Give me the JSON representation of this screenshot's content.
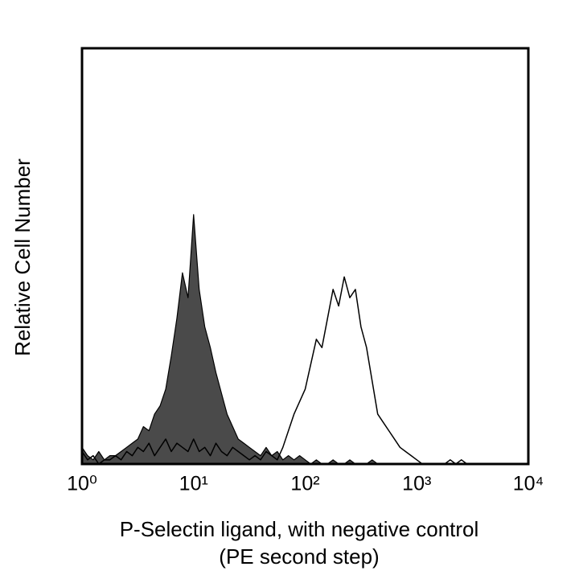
{
  "chart_data": {
    "type": "area",
    "xlabel": [
      "P-Selectin ligand, with negative control",
      "(PE second step)"
    ],
    "ylabel": "Relative Cell Number",
    "xscale": "log",
    "xlim": [
      1,
      10000
    ],
    "ylim": [
      0,
      100
    ],
    "xticks": [
      {
        "value": 1,
        "label": "10⁰"
      },
      {
        "value": 10,
        "label": "10¹"
      },
      {
        "value": 100,
        "label": "10²"
      },
      {
        "value": 1000,
        "label": "10³"
      },
      {
        "value": 10000,
        "label": "10⁴"
      }
    ],
    "x": [
      1,
      1.122,
      1.259,
      1.413,
      1.585,
      1.778,
      1.995,
      2.239,
      2.512,
      2.818,
      3.162,
      3.548,
      3.981,
      4.467,
      5.012,
      5.623,
      6.31,
      7.079,
      7.943,
      8.913,
      10,
      11.22,
      12.59,
      14.13,
      15.85,
      17.78,
      19.95,
      22.39,
      25.12,
      28.18,
      31.62,
      35.48,
      39.81,
      44.67,
      50.12,
      56.23,
      63.1,
      70.79,
      79.43,
      89.13,
      100,
      112.2,
      125.9,
      141.3,
      158.5,
      177.8,
      199.5,
      223.9,
      251.2,
      281.8,
      316.2,
      354.8,
      398.1,
      446.7,
      501.2,
      562.3,
      631,
      707.9,
      794.3,
      891.3,
      1000,
      1122,
      1259,
      1413,
      1585,
      1778,
      1995,
      2239,
      2512,
      2818,
      3162,
      3548,
      3981,
      4467,
      5012,
      5623,
      6310,
      7079,
      7943,
      8913,
      10000
    ],
    "series": [
      {
        "color": "#000000",
        "fill": "#4a4a4a",
        "values": [
          4,
          2,
          1,
          3,
          1,
          2,
          2,
          3,
          4,
          5,
          6,
          9,
          8,
          12,
          14,
          18,
          26,
          35,
          46,
          40,
          60,
          42,
          33,
          28,
          22,
          17,
          12,
          9,
          6,
          5,
          4,
          3,
          2,
          4,
          2,
          3,
          1,
          2,
          1,
          2,
          1,
          0,
          1,
          0,
          0,
          1,
          0,
          0,
          1,
          0,
          0,
          0,
          1,
          0,
          0,
          0,
          0,
          0,
          0,
          0,
          0,
          0,
          0,
          0,
          0,
          0,
          0,
          0,
          0,
          0,
          0,
          0,
          0,
          0,
          0,
          0,
          0,
          0,
          0,
          0,
          0
        ]
      },
      {
        "color": "#000000",
        "fill": "none",
        "values": [
          3,
          1,
          2,
          0,
          1,
          1,
          2,
          1,
          3,
          2,
          4,
          3,
          5,
          2,
          4,
          6,
          3,
          5,
          4,
          3,
          6,
          3,
          4,
          2,
          5,
          3,
          2,
          4,
          3,
          2,
          1,
          2,
          1,
          3,
          2,
          1,
          4,
          8,
          12,
          15,
          18,
          24,
          30,
          28,
          35,
          42,
          38,
          45,
          40,
          42,
          33,
          28,
          20,
          12,
          10,
          8,
          6,
          4,
          3,
          2,
          1,
          0,
          0,
          0,
          0,
          0,
          1,
          0,
          1,
          0,
          0,
          0,
          0,
          0,
          0,
          0,
          0,
          0,
          0,
          0,
          0
        ]
      }
    ]
  }
}
